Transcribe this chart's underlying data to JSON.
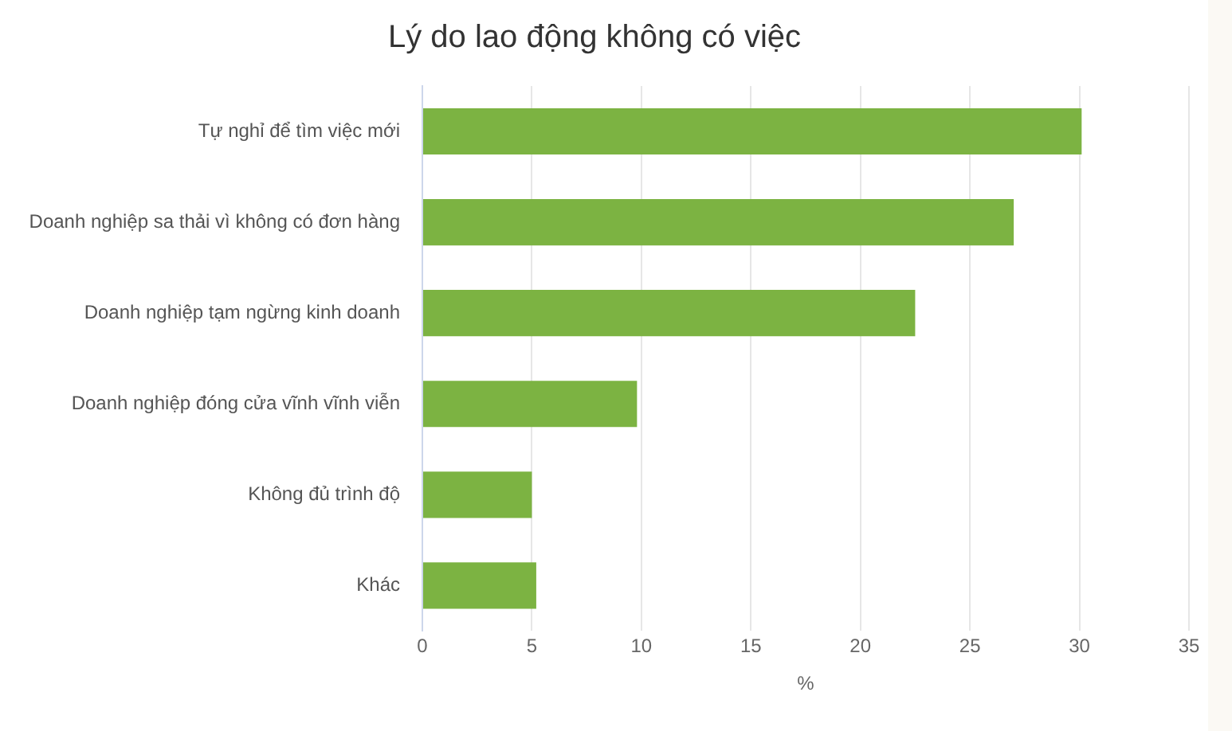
{
  "chart_data": {
    "type": "bar",
    "orientation": "horizontal",
    "title": "Lý do lao động không có việc",
    "xlabel": "%",
    "categories": [
      "Tự nghỉ để tìm việc mới",
      "Doanh nghiệp sa thải vì không có đơn hàng",
      "Doanh nghiệp tạm ngừng kinh doanh",
      "Doanh nghiệp đóng cửa vĩnh vĩnh viễn",
      "Không đủ trình độ",
      "Khác"
    ],
    "values": [
      30.1,
      27.0,
      22.5,
      9.8,
      5.0,
      5.2
    ],
    "color": "#7cb342",
    "xlim": [
      0,
      35
    ],
    "xticks": [
      0,
      5,
      10,
      15,
      20,
      25,
      30,
      35
    ],
    "grid": "x"
  }
}
